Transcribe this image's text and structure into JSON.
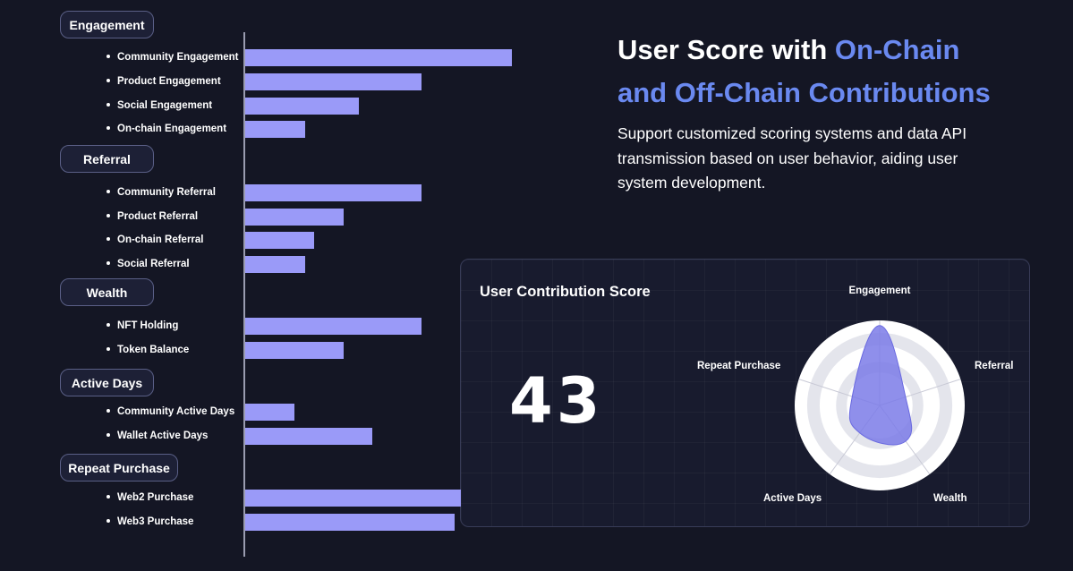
{
  "categories": [
    {
      "label": "Engagement",
      "items": [
        {
          "label": "Community Engagement",
          "value": 100
        },
        {
          "label": "Product Engagement",
          "value": 66
        },
        {
          "label": "Social Engagement",
          "value": 42.5
        },
        {
          "label": "On-chain Engagement",
          "value": 22.5
        }
      ]
    },
    {
      "label": "Referral",
      "items": [
        {
          "label": "Community Referral",
          "value": 66
        },
        {
          "label": "Product Referral",
          "value": 37
        },
        {
          "label": "On-chain Referral",
          "value": 26
        },
        {
          "label": "Social Referral",
          "value": 22.5
        }
      ]
    },
    {
      "label": "Wealth",
      "items": [
        {
          "label": "NFT Holding",
          "value": 66
        },
        {
          "label": "Token Balance",
          "value": 37
        }
      ]
    },
    {
      "label": "Active Days",
      "items": [
        {
          "label": "Community Active Days",
          "value": 18.5
        },
        {
          "label": "Wallet Active Days",
          "value": 47.5
        }
      ]
    },
    {
      "label": "Repeat Purchase",
      "items": [
        {
          "label": "Web2 Purchase",
          "value": 81
        },
        {
          "label": "Web3 Purchase",
          "value": 78.5
        }
      ]
    }
  ],
  "headline": {
    "line1": "User Score with ",
    "accent1": "On-Chain",
    "line2": "and Off-Chain Contributions"
  },
  "description": "Support customized scoring systems and data API transmission based on user behavior, aiding user system development.",
  "card": {
    "title": "User Contribution Score",
    "score": "43"
  },
  "radar": {
    "axes": [
      "Engagement",
      "Referral",
      "Wealth",
      "Active Days",
      "Repeat Purchase"
    ],
    "values": [
      0.94,
      0.32,
      0.52,
      0.4,
      0.34
    ]
  },
  "colors": {
    "background": "#141624",
    "bar": "#9a9af8",
    "accent": "#6a89f0",
    "radar_fill": "#7b7be8"
  }
}
